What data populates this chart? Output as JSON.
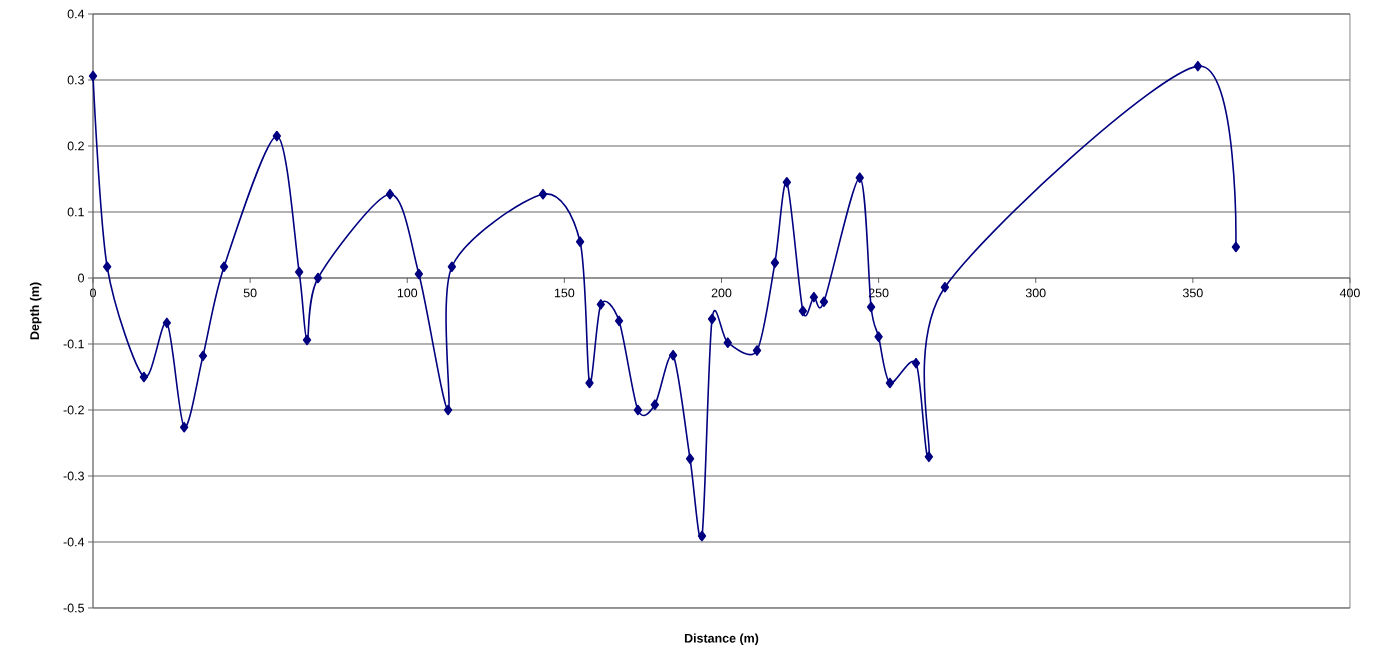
{
  "chart_data": {
    "type": "line",
    "xlabel": "Distance (m)",
    "ylabel": "Depth (m)",
    "x": [
      0,
      4.5,
      16.2,
      23.5,
      29,
      35,
      41.7,
      58.5,
      65.6,
      68.1,
      71.6,
      94.5,
      103.7,
      113,
      114.2,
      143.2,
      155,
      158,
      161.6,
      167.4,
      173.4,
      178.8,
      184.6,
      190,
      193.8,
      197,
      202,
      211.3,
      217,
      220.8,
      225.9,
      229.4,
      232.6,
      244,
      247.6,
      250,
      253.6,
      261.9,
      266,
      271.1,
      351.6,
      363.7
    ],
    "values": [
      0.306,
      0.017,
      -0.15,
      -0.068,
      -0.226,
      -0.118,
      0.017,
      0.215,
      0.009,
      -0.094,
      0.0,
      0.127,
      0.006,
      -0.2,
      0.017,
      0.127,
      0.055,
      -0.159,
      -0.04,
      -0.065,
      -0.2,
      -0.192,
      -0.117,
      -0.274,
      -0.391,
      -0.062,
      -0.098,
      -0.11,
      0.023,
      0.145,
      -0.05,
      -0.029,
      -0.036,
      0.152,
      -0.044,
      -0.089,
      -0.159,
      -0.129,
      -0.271,
      -0.014,
      0.321,
      0.047
    ],
    "color": "#000080",
    "xlim": [
      0,
      400
    ],
    "ylim": [
      -0.5,
      0.4
    ],
    "xticks": [
      0,
      50,
      100,
      150,
      200,
      250,
      300,
      350,
      400
    ],
    "yticks": [
      -0.5,
      -0.4,
      -0.3,
      -0.2,
      -0.1,
      0,
      0.1,
      0.2,
      0.3,
      0.4
    ],
    "grid": "y",
    "marker": "diamond",
    "line_style": "solid"
  }
}
